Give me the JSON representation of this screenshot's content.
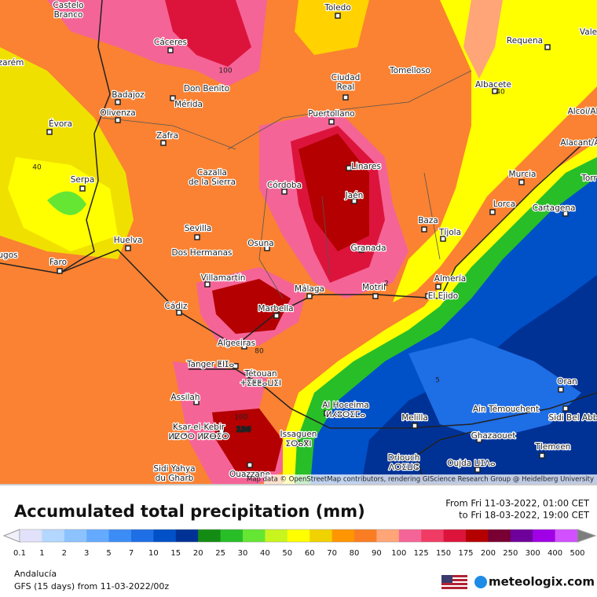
{
  "map": {
    "places": [
      [
        "Castelo",
        "Branco"
      ],
      [
        "Cáceres"
      ],
      [
        "Toledo"
      ],
      [
        "Requena"
      ],
      [
        "Vale"
      ],
      [
        "zarém"
      ],
      [
        "Don Benito"
      ],
      [
        "Ciudad",
        "Real"
      ],
      [
        "Tomelloso"
      ],
      [
        "Albacete"
      ],
      [
        "Badajoz"
      ],
      [
        "Mérida"
      ],
      [
        "Olivenza"
      ],
      [
        "Évora"
      ],
      [
        "Puertollano"
      ],
      [
        "Alcoi/Al"
      ],
      [
        "Zafra"
      ],
      [
        "Alacant/Al"
      ],
      [
        "Linares"
      ],
      [
        "Cazalla",
        "de la Sierra"
      ],
      [
        "Serpa"
      ],
      [
        "Córdoba"
      ],
      [
        "Murcia"
      ],
      [
        "Torr"
      ],
      [
        "Jaén"
      ],
      [
        "Lorca"
      ],
      [
        "Cartagena"
      ],
      [
        "Baza"
      ],
      [
        "Sevilla"
      ],
      [
        "Huelva"
      ],
      [
        "Tíjola"
      ],
      [
        "Osuna"
      ],
      [
        "Granada"
      ],
      [
        "Dos Hermanas"
      ],
      [
        "Faro"
      ],
      [
        "ugos"
      ],
      [
        "Villamartín"
      ],
      [
        "Almería"
      ],
      [
        "Málaga"
      ],
      [
        "Motril"
      ],
      [
        "El Ejido"
      ],
      [
        "Cádiz"
      ],
      [
        "Marbella"
      ],
      [
        "Algeciras"
      ],
      [
        "Tanger ⵟⵏⵊⴰ"
      ],
      [
        "Tétouan",
        "ⵜⵉⵟⵟⴰⵡⵉⵏ"
      ],
      [
        "Oran"
      ],
      [
        "Al Hoceima",
        "ⵍⵃⵓⵙⵉⵎⴰ"
      ],
      [
        "Melilla"
      ],
      [
        "Ain Témouchent"
      ],
      [
        "Sidi Bel Abb"
      ],
      [
        "Assilah"
      ],
      [
        "Ksar-el-Kebir",
        "ⵍⵇⵚⵔ ⵍⴽⴱⵉⵔ"
      ],
      [
        "Issaguen",
        "ⵉⵙⴰⴳⵏ"
      ],
      [
        "Ghazaouet"
      ],
      [
        "Tlemcen"
      ],
      [
        "Driouch",
        "ⴷⵔⵉⵡⵛ"
      ],
      [
        "Oujda ⵡⵊⴷⴰ"
      ],
      [
        "Sidi Yahya",
        "du Gharb"
      ],
      [
        "Ouazzane"
      ]
    ],
    "contour_labels": [
      "100",
      "40",
      "40",
      "80",
      "100",
      "5",
      "2",
      "136"
    ],
    "attribution": "Map data © OpenStreetMap contributors, rendering GIScience Research Group @ Heidelberg University"
  },
  "legend": {
    "title": "Accumulated total precipitation (mm)",
    "from": "From Fri 11-03-2022, 01:00 CET",
    "to": "to Fri 18-03-2022, 19:00 CET",
    "levels": [
      0.1,
      1,
      2,
      3,
      5,
      7,
      10,
      15,
      20,
      25,
      30,
      40,
      50,
      60,
      70,
      80,
      90,
      100,
      125,
      150,
      175,
      200,
      250,
      300,
      400,
      500
    ],
    "colors": [
      "#e1e1fa",
      "#b4d7ff",
      "#8cc3ff",
      "#64aaff",
      "#3c8cf5",
      "#1e6ee6",
      "#0050c8",
      "#003296",
      "#148c14",
      "#28be28",
      "#64e632",
      "#c8f51e",
      "#ffff00",
      "#f0d200",
      "#ff9600",
      "#fa7d23",
      "#ffa578",
      "#f56496",
      "#f03c64",
      "#dc143c",
      "#b40000",
      "#780032",
      "#6e009b",
      "#a000e6",
      "#d250ff"
    ]
  },
  "footer": {
    "region": "Andalucía",
    "model": "GFS (15 days) from  11-03-2022/00z",
    "brand": "meteologix.com"
  }
}
